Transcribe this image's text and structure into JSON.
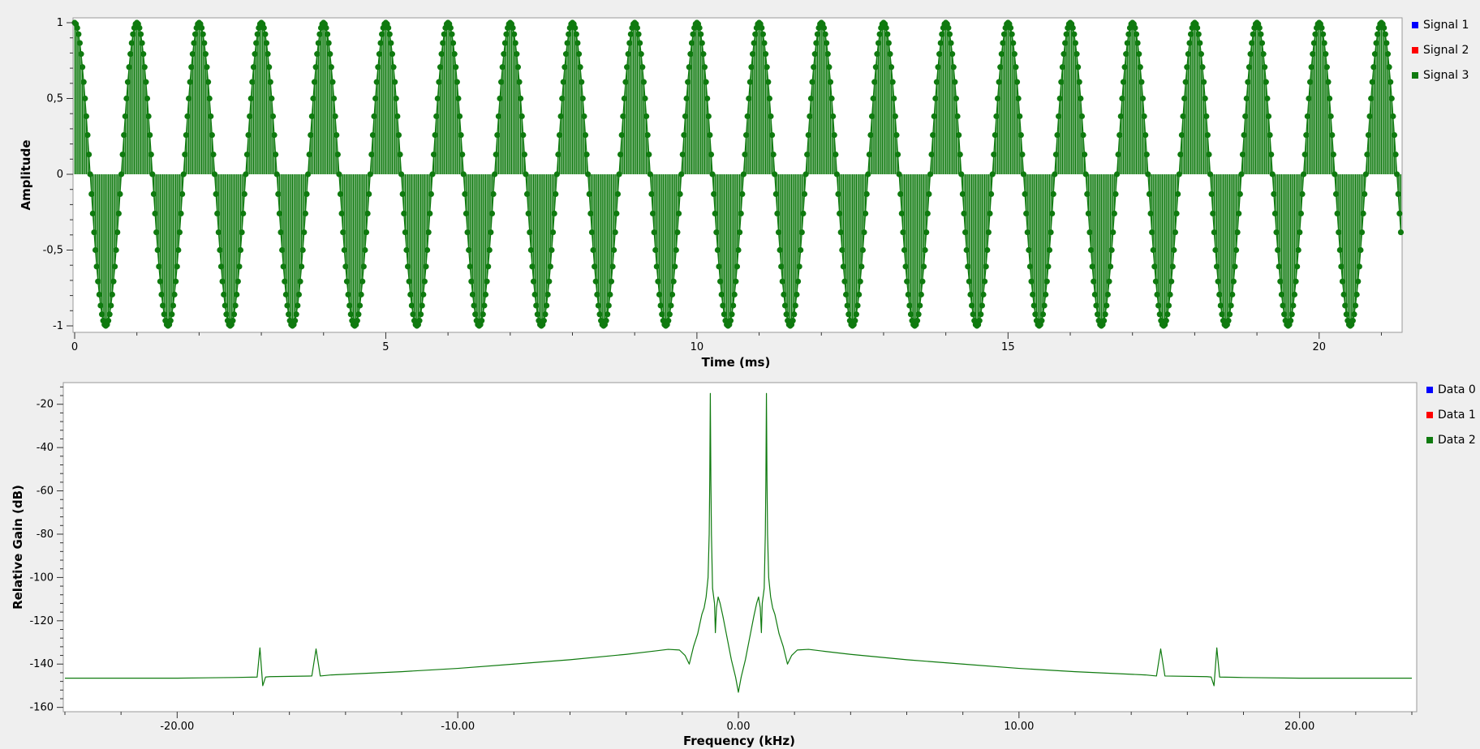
{
  "chart_data": [
    {
      "type": "line",
      "style": "stem",
      "title": "",
      "xlabel": "Time (ms)",
      "ylabel": "Amplitude",
      "xlim": [
        0,
        21.333
      ],
      "ylim": [
        -1,
        1
      ],
      "xticks": [
        0,
        5,
        10,
        15,
        20
      ],
      "xtick_labels": [
        "0",
        "5",
        "10",
        "15",
        "20"
      ],
      "yticks": [
        1,
        0.5,
        0,
        -0.5,
        -1
      ],
      "ytick_labels": [
        "1",
        "0,5",
        "0",
        "-0,5",
        "-1"
      ],
      "grid": false,
      "legend_position": "right",
      "legend": [
        {
          "name": "Signal 1",
          "color": "#0000ff"
        },
        {
          "name": "Signal 2",
          "color": "#ff0000"
        },
        {
          "name": "Signal 3",
          "color": "#0f7a0f"
        }
      ],
      "series": [
        {
          "name": "Signal 3",
          "color": "#0f7a0f",
          "signal": "cosine",
          "frequency_khz": 1.0,
          "sample_rate_khz": 48,
          "amplitude": 1,
          "t_start_ms": 0,
          "t_end_ms": 21.333
        }
      ]
    },
    {
      "type": "line",
      "title": "",
      "xlabel": "Frequency (kHz)",
      "ylabel": "Relative Gain (dB)",
      "xlim": [
        -24,
        24
      ],
      "ylim": [
        -162,
        -10
      ],
      "xticks": [
        -20,
        -10,
        0,
        10,
        20
      ],
      "xtick_labels": [
        "-20.00",
        "-10.00",
        "0.00",
        "10.00",
        "20.00"
      ],
      "yticks": [
        -20,
        -40,
        -60,
        -80,
        -100,
        -120,
        -140,
        -160
      ],
      "ytick_labels": [
        "-20",
        "-40",
        "-60",
        "-80",
        "-100",
        "-120",
        "-140",
        "-160"
      ],
      "grid": false,
      "legend_position": "right",
      "legend": [
        {
          "name": "Data 0",
          "color": "#0000ff"
        },
        {
          "name": "Data 1",
          "color": "#ff0000"
        },
        {
          "name": "Data 2",
          "color": "#0f7a0f"
        }
      ],
      "series": [
        {
          "name": "Data 2",
          "color": "#0f7a0f",
          "points": [
            [
              -24,
              -146.5
            ],
            [
              -20,
              -146.5
            ],
            [
              -18,
              -146.2
            ],
            [
              -17.15,
              -146.0
            ],
            [
              -17.05,
              -132.5
            ],
            [
              -16.95,
              -150.0
            ],
            [
              -16.85,
              -146.0
            ],
            [
              -16.7,
              -145.8
            ],
            [
              -15.2,
              -145.5
            ],
            [
              -15.05,
              -133.0
            ],
            [
              -14.9,
              -145.5
            ],
            [
              -14.5,
              -145.0
            ],
            [
              -12,
              -143.5
            ],
            [
              -10,
              -142.0
            ],
            [
              -8,
              -140.0
            ],
            [
              -6,
              -138.0
            ],
            [
              -4,
              -135.5
            ],
            [
              -3,
              -134.0
            ],
            [
              -2.5,
              -133.2
            ],
            [
              -2.1,
              -133.5
            ],
            [
              -1.9,
              -136.0
            ],
            [
              -1.75,
              -140.0
            ],
            [
              -1.6,
              -132.0
            ],
            [
              -1.45,
              -126.0
            ],
            [
              -1.3,
              -117.0
            ],
            [
              -1.22,
              -114.0
            ],
            [
              -1.15,
              -109.0
            ],
            [
              -1.08,
              -100.0
            ],
            [
              -1.04,
              -80.0
            ],
            [
              -1.02,
              -55.0
            ],
            [
              -1.0,
              -15.0
            ],
            [
              -0.98,
              -55.0
            ],
            [
              -0.96,
              -80.0
            ],
            [
              -0.92,
              -105.0
            ],
            [
              -0.85,
              -112.0
            ],
            [
              -0.82,
              -125.5
            ],
            [
              -0.78,
              -114.0
            ],
            [
              -0.72,
              -109.0
            ],
            [
              -0.65,
              -112.0
            ],
            [
              -0.55,
              -118.0
            ],
            [
              -0.4,
              -128.0
            ],
            [
              -0.25,
              -138.0
            ],
            [
              -0.1,
              -146.0
            ],
            [
              0.0,
              -153.0
            ],
            [
              0.1,
              -146.0
            ],
            [
              0.25,
              -138.0
            ],
            [
              0.4,
              -128.0
            ],
            [
              0.55,
              -118.0
            ],
            [
              0.65,
              -112.0
            ],
            [
              0.72,
              -109.0
            ],
            [
              0.78,
              -114.0
            ],
            [
              0.82,
              -125.5
            ],
            [
              0.85,
              -112.0
            ],
            [
              0.92,
              -105.0
            ],
            [
              0.96,
              -80.0
            ],
            [
              0.98,
              -55.0
            ],
            [
              1.0,
              -15.0
            ],
            [
              1.02,
              -55.0
            ],
            [
              1.04,
              -80.0
            ],
            [
              1.08,
              -100.0
            ],
            [
              1.15,
              -109.0
            ],
            [
              1.22,
              -114.0
            ],
            [
              1.3,
              -117.0
            ],
            [
              1.45,
              -126.0
            ],
            [
              1.6,
              -132.0
            ],
            [
              1.75,
              -140.0
            ],
            [
              1.9,
              -136.0
            ],
            [
              2.1,
              -133.5
            ],
            [
              2.5,
              -133.2
            ],
            [
              3,
              -134.0
            ],
            [
              4,
              -135.5
            ],
            [
              6,
              -138.0
            ],
            [
              8,
              -140.0
            ],
            [
              10,
              -142.0
            ],
            [
              12,
              -143.5
            ],
            [
              14.5,
              -145.0
            ],
            [
              14.9,
              -145.5
            ],
            [
              15.05,
              -133.0
            ],
            [
              15.2,
              -145.5
            ],
            [
              16.7,
              -145.8
            ],
            [
              16.85,
              -146.0
            ],
            [
              16.95,
              -150.0
            ],
            [
              17.05,
              -132.5
            ],
            [
              17.15,
              -146.0
            ],
            [
              18,
              -146.2
            ],
            [
              20,
              -146.5
            ],
            [
              24,
              -146.5
            ]
          ]
        }
      ]
    }
  ]
}
